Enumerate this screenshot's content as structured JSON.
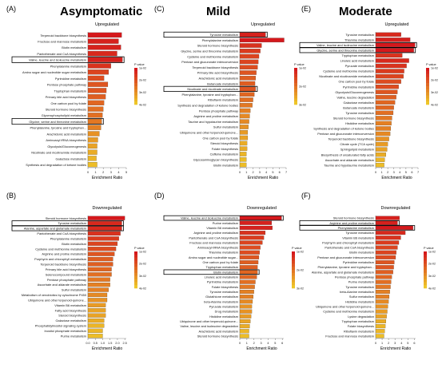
{
  "headings": {
    "asymptomatic": "Asymptomatic",
    "mild": "Mild",
    "moderate": "Moderate"
  },
  "chart_data": [
    {
      "panel": "(A)",
      "type": "bar",
      "direction": "Upregulated",
      "legend_title": "P value",
      "xlabel": "Enrichment Ratio",
      "xticks": [
        "0",
        "1",
        "2",
        "3",
        "4",
        "5"
      ],
      "xlim": [
        0,
        5
      ],
      "legend_ticks": [
        "1e-02",
        "2e-02",
        "3e-02",
        "4e-02"
      ],
      "categories": [
        "Terpenoid backbone biosynthesis",
        "Fructose and mannose metabolism",
        "Biotin metabolism",
        "Pantothenate and CoA biosynthesis",
        "Valine, leucine and isoleucine metabolism",
        "Phenylalanine metabolism",
        "Amino sugar and nucleotide sugar metabolism",
        "Pyrimidine metabolism",
        "Pentose phosphate pathway",
        "Tryptophan metabolism",
        "Primary bile acid biosynthesis",
        "One carbon pool by folate",
        "Steroid hormone biosynthesis",
        "Glycerophospholipid metabolism",
        "Glycine, serine and threonine metabolism",
        "Phenylalanine, tyrosine and tryptophan...",
        "Arachidonic acid metabolism",
        "Aminoacyl tRNA biosynthesis",
        "Glycolysis/Gluconeogenesis",
        "Nicotinate and nicotinamide metabolism",
        "Galactose metabolism",
        "Synthesis and degradation of ketone bodies"
      ],
      "values": [
        4.4,
        4.0,
        4.3,
        3.8,
        4.5,
        3.0,
        2.7,
        2.1,
        2.6,
        2.4,
        2.3,
        2.1,
        2.0,
        1.9,
        1.8,
        1.7,
        1.5,
        1.3,
        1.2,
        1.2,
        1.1,
        1.2
      ],
      "pvalue_rank": [
        0.0,
        0.05,
        0.05,
        0.1,
        0.05,
        0.15,
        0.25,
        0.3,
        0.35,
        0.35,
        0.4,
        0.45,
        0.5,
        0.5,
        0.55,
        0.6,
        0.7,
        0.75,
        0.8,
        0.85,
        0.9,
        0.95
      ],
      "boxed": [
        "Valine, leucine and isoleucine metabolism",
        "Glycine, serine and threonine metabolism"
      ]
    },
    {
      "panel": "(B)",
      "type": "bar",
      "direction": "Downregulated",
      "legend_title": "P value",
      "xlabel": "Enrichment Ratio",
      "xticks": [
        "0.0",
        "0.5",
        "1.0",
        "1.5",
        "2.0",
        "2.5"
      ],
      "xlim": [
        0,
        2.6
      ],
      "legend_ticks": [
        "1e-02",
        "2e-02",
        "3e-02",
        "4e-02"
      ],
      "categories": [
        "Steroid hormone biosynthesis",
        "Tyrosine metabolism",
        "Alanine, aspartate and glutamate metabolism",
        "Pantothenate and CoA biosynthesis",
        "Phenylalanine metabolism",
        "Biotin metabolism",
        "Cysteine and methionine metabolism",
        "Arginine and proline metabolism",
        "Porphyrin and chlorophyll metabolism",
        "Terpenoid backbone biosynthesis",
        "Primary bile acid biosynthesis",
        "Selenocompound metabolism",
        "Pentose phosphate pathway",
        "Ascorbate and aldarate metabolism",
        "Sulfur metabolism",
        "Metabolism of xenobiotics by cytochrome P450",
        "Ubiquinone and other terpenoid-quinone...",
        "Vitamin B6 metabolism",
        "Fatty acid biosynthesis",
        "Steroid biosynthesis",
        "Galactose metabolism",
        "Phosphatidylinositol signaling system",
        "Inositol phosphate metabolism",
        "Purine metabolism"
      ],
      "values": [
        2.5,
        2.3,
        2.3,
        2.2,
        2.1,
        2.0,
        1.9,
        1.8,
        1.7,
        1.7,
        1.6,
        1.6,
        1.5,
        1.5,
        1.4,
        1.3,
        1.3,
        1.2,
        1.2,
        1.2,
        1.1,
        1.1,
        1.0,
        1.0
      ],
      "pvalue_rank": [
        0.0,
        0.1,
        0.1,
        0.15,
        0.2,
        0.25,
        0.3,
        0.35,
        0.4,
        0.4,
        0.45,
        0.5,
        0.55,
        0.6,
        0.6,
        0.65,
        0.7,
        0.75,
        0.8,
        0.8,
        0.85,
        0.9,
        0.9,
        0.95
      ],
      "boxed": [
        "Tyrosine metabolism",
        "Alanine, aspartate and glutamate metabolism"
      ]
    },
    {
      "panel": "(C)",
      "type": "bar",
      "direction": "Upregulated",
      "legend_title": "P value",
      "xlabel": "Enrichment Ratio",
      "xticks": [
        "0",
        "1",
        "2",
        "3",
        "4",
        "5",
        "6",
        "7"
      ],
      "xlim": [
        0,
        7
      ],
      "legend_ticks": [
        "1e-02",
        "2e-02",
        "3e-02"
      ],
      "categories": [
        "Tyrosine metabolism",
        "Phenylalanine metabolism",
        "Steroid hormone biosynthesis",
        "Glycine, serine and threonine metabolism",
        "Cysteine and methionine metabolism",
        "Pentose and glucuronate interconversion",
        "Terpenoid backbone biosynthesis",
        "Primary bile acid biosynthesis",
        "Arachidonic acid metabolism",
        "Butanoate metabolism",
        "Nicotinate and nicotinate metabolism",
        "Phenylalanine, tyrosine and tryptophan...",
        "Riboflavin metabolism",
        "Synthesis and degradation of ketone bodies",
        "Pentose phosphate pathway",
        "Arginine and proline metabolism",
        "Taurine and hypotaurine metabolism",
        "Sulfur metabolism",
        "Ubiquinone and other terpenoid-quinone...",
        "One carbon pool by folate",
        "Steroid biosynthesis",
        "Folate biosynthesis",
        "Caffeine metabolism",
        "Glycosaminoglycan biosynthesis",
        "Biotin metabolism"
      ],
      "values": [
        3.9,
        6.7,
        3.3,
        3.1,
        2.9,
        2.8,
        2.7,
        2.5,
        2.4,
        2.3,
        2.4,
        2.2,
        2.0,
        1.9,
        1.6,
        1.5,
        1.4,
        1.3,
        1.2,
        1.2,
        1.1,
        1.1,
        1.0,
        1.0,
        1.0
      ],
      "pvalue_rank": [
        0.05,
        0.0,
        0.15,
        0.2,
        0.25,
        0.25,
        0.3,
        0.35,
        0.4,
        0.4,
        0.35,
        0.45,
        0.5,
        0.55,
        0.6,
        0.65,
        0.65,
        0.7,
        0.75,
        0.8,
        0.85,
        0.85,
        0.9,
        0.95,
        0.95
      ],
      "boxed": [
        "Tyrosine metabolism",
        "Nicotinate and nicotinate metabolism"
      ]
    },
    {
      "panel": "(D)",
      "type": "bar",
      "direction": "Downregulated",
      "legend_title": "P value",
      "xlabel": "Enrichment Ratio",
      "xticks": [
        "0",
        "1",
        "2",
        "3",
        "4",
        "5",
        "6"
      ],
      "xlim": [
        0,
        6.2
      ],
      "legend_ticks": [
        "1e-02",
        "2e-02",
        "3e-02"
      ],
      "categories": [
        "Valine, leucine and isoleucine metabolism",
        "Purine metabolism",
        "Vitamin B6 metabolism",
        "Arginine and proline metabolism",
        "Pantothenate and CoA biosynthesis",
        "Fructose and mannose metabolism",
        "Aminoacyl-tRNA biosynthesis",
        "Thiamine metabolism",
        "Amino sugar and nucleotide sugar...",
        "One carbon pool by folate",
        "Tryptophan metabolism",
        "Biotin metabolism",
        "Linoleic acid metabolism",
        "Pyrimidine metabolism",
        "Folate biosynthesis",
        "Tyrosine metabolism",
        "Glutathione metabolism",
        "beta-Alanine metabolism",
        "Pyruvate metabolism",
        "Drug metabolism",
        "Histidine metabolism",
        "Ubiquinone and other terpenoid-quinone...",
        "Valine, leucine and isoleucine degradation",
        "Arachidonic acid metabolism",
        "Steroid hormone biosynthesis"
      ],
      "values": [
        5.9,
        4.5,
        4.6,
        3.6,
        3.4,
        3.2,
        2.9,
        2.8,
        2.7,
        2.6,
        2.5,
        2.5,
        2.4,
        2.2,
        2.1,
        2.0,
        1.9,
        1.8,
        1.7,
        1.7,
        1.6,
        1.5,
        1.4,
        1.3,
        1.3
      ],
      "pvalue_rank": [
        0.0,
        0.05,
        0.05,
        0.15,
        0.2,
        0.25,
        0.3,
        0.3,
        0.35,
        0.4,
        0.4,
        0.45,
        0.45,
        0.5,
        0.55,
        0.6,
        0.6,
        0.65,
        0.7,
        0.7,
        0.75,
        0.8,
        0.85,
        0.9,
        0.95
      ],
      "boxed": [
        "Valine, leucine and isoleucine metabolism",
        "Biotin metabolism"
      ]
    },
    {
      "panel": "(E)",
      "type": "bar",
      "direction": "Upregulated",
      "legend_title": "P value",
      "xlabel": "Enrichment Ratio",
      "xticks": [
        "0",
        "1",
        "2",
        "3",
        "4",
        "5",
        "6",
        "7"
      ],
      "xlim": [
        0,
        7
      ],
      "legend_ticks": [
        "1e-02",
        "2e-02",
        "3e-02",
        "4e-02"
      ],
      "categories": [
        "Tyrosine metabolism",
        "Thiamine metabolism",
        "Valine, leucine and isoleucine metabolism",
        "Glycine, serine and threonine metabolism",
        "Tryptophan metabolism",
        "Linoleic acid metabolism",
        "Pyruvate metabolism",
        "Cysteine and methionine metabolism",
        "Nicotinate and nicotinamide metabolism",
        "One carbon pool by folate",
        "Pyrimidine metabolism",
        "Glycolysis/Gluconeogenesis",
        "Valine, leucine degradation",
        "Galactose metabolism",
        "Butanoate metabolism",
        "Tyrosine metabolism",
        "Steroid hormone biosynthesis",
        "Histidine metabolism",
        "Synthesis and degradation of ketone bodies",
        "Pentose and glucuronate interconversion",
        "Terpenoid backbone biosynthesis",
        "Citrate cycle (TCA cycle)",
        "Sphingolipid metabolism",
        "Biosynthesis of unsaturated fatty acids",
        "Ascorbate and aldarate metabolism",
        "Taurine and hypotaurine metabolism"
      ],
      "values": [
        4.2,
        5.7,
        6.5,
        6.3,
        4.4,
        5.5,
        5.1,
        4.7,
        4.6,
        4.2,
        3.8,
        3.6,
        3.4,
        3.2,
        3.0,
        2.9,
        2.7,
        2.6,
        2.5,
        2.4,
        2.2,
        2.0,
        1.9,
        1.7,
        1.5,
        1.4
      ],
      "pvalue_rank": [
        0.1,
        0.05,
        0.0,
        0.0,
        0.15,
        0.1,
        0.15,
        0.2,
        0.25,
        0.3,
        0.3,
        0.35,
        0.4,
        0.45,
        0.45,
        0.5,
        0.55,
        0.6,
        0.6,
        0.65,
        0.7,
        0.75,
        0.8,
        0.85,
        0.9,
        0.95
      ],
      "boxed": [
        "Valine, leucine and isoleucine metabolism",
        "Glycine, serine and threonine metabolism"
      ]
    },
    {
      "panel": "(F)",
      "type": "bar",
      "direction": "Downregulated",
      "legend_title": "P value",
      "xlabel": "Enrichment Ratio",
      "xticks": [
        "0",
        "1",
        "2",
        "3",
        "4",
        "5",
        "6"
      ],
      "xlim": [
        0,
        6.2
      ],
      "legend_ticks": [
        "1e-02",
        "2e-02",
        "3e-02",
        "4e-02"
      ],
      "categories": [
        "Steroid hormone biosynthesis",
        "Arginine and proline metabolism",
        "Phenylalanine metabolism",
        "Tyrosine metabolism",
        "Vitamin B6 metabolism",
        "Porphyrin and chlorophyll metabolism",
        "Pantothenate and CoA biosynthesis",
        "Biotin metabolism",
        "Pentose and glucuronate interconversion",
        "Pyrimidine metabolism",
        "Phenylalanine, tyrosine and tryptophan...",
        "Alanine, aspartate and glutamate metabolism",
        "Pentose phosphate pathway",
        "Purine metabolism",
        "Tyrosine metabolism",
        "beta-Alanine metabolism",
        "Sulfur metabolism",
        "Histidine metabolism",
        "Ubiquinone and other terpenoid-quinone...",
        "Cysteine and methionine metabolism",
        "Lysine degradation",
        "Tryptophan metabolism",
        "Folate biosynthesis",
        "Riboflavin metabolism",
        "Fructose and mannose metabolism"
      ],
      "values": [
        3.7,
        3.4,
        5.8,
        4.6,
        3.9,
        3.6,
        3.4,
        3.2,
        3.1,
        2.9,
        2.8,
        2.7,
        2.5,
        2.4,
        2.3,
        2.2,
        2.1,
        2.0,
        1.9,
        1.8,
        1.7,
        1.6,
        1.5,
        1.4,
        1.3
      ],
      "pvalue_rank": [
        0.05,
        0.05,
        0.0,
        0.1,
        0.15,
        0.2,
        0.25,
        0.25,
        0.3,
        0.35,
        0.35,
        0.4,
        0.45,
        0.5,
        0.55,
        0.6,
        0.6,
        0.65,
        0.7,
        0.75,
        0.8,
        0.85,
        0.9,
        0.9,
        0.95
      ],
      "boxed": [
        "Arginine and proline metabolism",
        "Phenylalanine metabolism"
      ]
    }
  ]
}
